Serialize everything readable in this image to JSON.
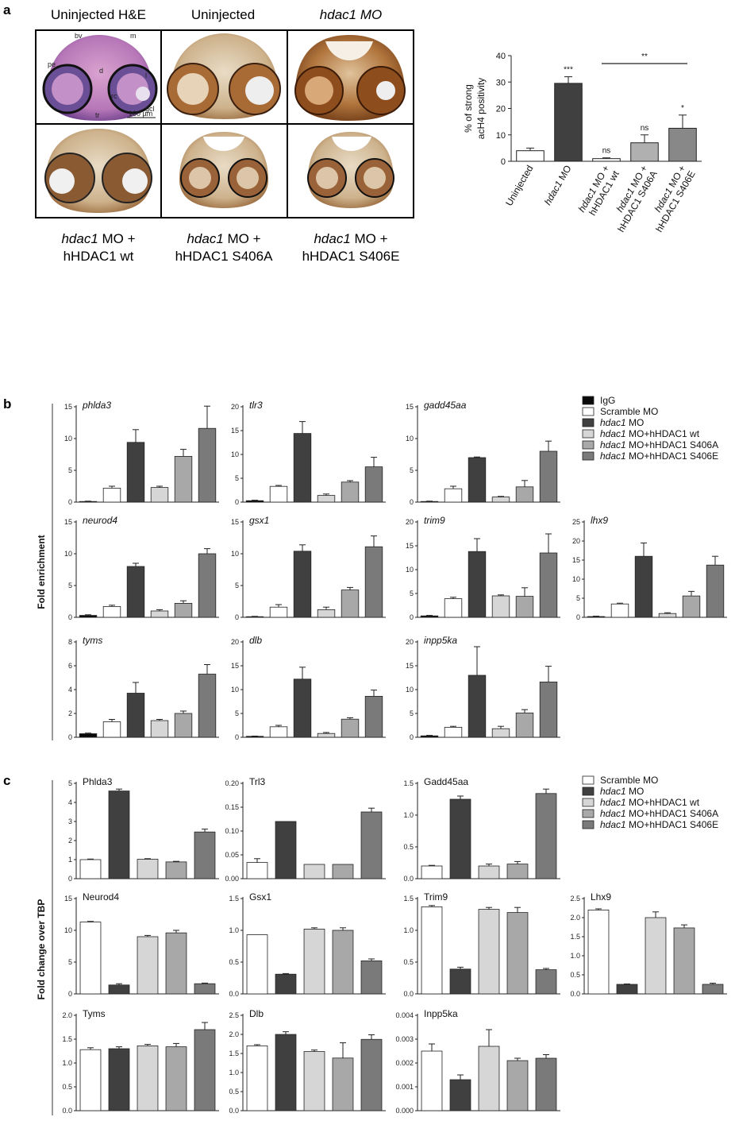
{
  "panel_a": {
    "letter": "a",
    "micro_titles": [
      {
        "text": "Uninjected H&E",
        "italic": false
      },
      {
        "text": "Uninjected",
        "italic": false
      },
      {
        "text": "hdac1 MO",
        "italic": true
      }
    ],
    "he_labels": [
      "bv",
      "m",
      "pe",
      "d",
      "l",
      "rc",
      "gcl",
      "tr",
      "100 µm"
    ],
    "captions": [
      {
        "line1_italic": "hdac1",
        "line1_rest": " MO +",
        "line2": "hHDAC1 wt"
      },
      {
        "line1_italic": "hdac1",
        "line1_rest": " MO +",
        "line2": "hHDAC1 S406A"
      },
      {
        "line1_italic": "hdac1",
        "line1_rest": " MO +",
        "line2": "hHDAC1 S406E"
      }
    ]
  },
  "panel_b": {
    "letter": "b",
    "ylabel": "Fold enrichment"
  },
  "panel_c": {
    "letter": "c",
    "ylabel": "Fold change over TBP"
  },
  "colors": {
    "IgG": "#0a0a0a",
    "scramble": "#ffffff",
    "mo": "#404040",
    "wt": "#d6d6d6",
    "s406a": "#a8a8a8",
    "s406e": "#7a7a7a"
  },
  "chart_data": [
    {
      "id": "a-chart",
      "type": "bar",
      "ylabel": "% of strong acH4 positivity",
      "ylim": [
        0,
        40
      ],
      "yticks": [
        "0",
        "10",
        "20",
        "30",
        "40"
      ],
      "categories": [
        {
          "italic": "",
          "rest": "Uninjected",
          "line2": ""
        },
        {
          "italic": "hdac1",
          "rest": " MO",
          "line2": ""
        },
        {
          "italic": "hdac1",
          "rest": " MO +",
          "line2": "hHDAC1 wt"
        },
        {
          "italic": "hdac1",
          "rest": " MO +",
          "line2": "hHDAC1 S406A"
        },
        {
          "italic": "hdac1",
          "rest": " MO +",
          "line2": "hHDAC1 S406E"
        }
      ],
      "values": [
        4,
        29.5,
        1,
        7,
        12.5
      ],
      "errors": [
        1,
        2.5,
        0.3,
        3,
        5
      ],
      "colors": [
        "#ffffff",
        "#404040",
        "#ffffff",
        "#b0b0b0",
        "#888888"
      ],
      "significance": [
        "",
        "***",
        "ns",
        "ns",
        "*"
      ],
      "bracket": {
        "from": 2,
        "to": 4,
        "label": "**",
        "y": 37
      }
    },
    {
      "id": "b-phlda3",
      "type": "bar",
      "title": "phlda3",
      "italic": true,
      "legend": [
        "IgG",
        "Scramble MO",
        "hdac1 MO",
        "hdac1 MO+hHDAC1 wt",
        "hdac1 MO+hHDAC1 S406A",
        "hdac1 MO+hHDAC1 S406E"
      ],
      "ylim": [
        0,
        15
      ],
      "yticks": [
        "0",
        "5",
        "10",
        "15"
      ],
      "values": [
        0.1,
        2.2,
        9.4,
        2.3,
        7.2,
        11.6
      ],
      "errors": [
        0.05,
        0.3,
        2.0,
        0.2,
        1.1,
        3.5
      ]
    },
    {
      "id": "b-tlr3",
      "type": "bar",
      "title": "tlr3",
      "italic": true,
      "ylim": [
        0,
        20
      ],
      "yticks": [
        "0",
        "5",
        "10",
        "15",
        "20"
      ],
      "values": [
        0.3,
        3.3,
        14.4,
        1.4,
        4.2,
        7.4
      ],
      "errors": [
        0.1,
        0.2,
        2.5,
        0.3,
        0.3,
        2.0
      ]
    },
    {
      "id": "b-gadd45aa",
      "type": "bar",
      "title": "gadd45aa",
      "italic": true,
      "ylim": [
        0,
        15
      ],
      "yticks": [
        "0",
        "5",
        "10",
        "15"
      ],
      "values": [
        0.1,
        2.1,
        7.0,
        0.8,
        2.4,
        8.0
      ],
      "errors": [
        0.05,
        0.4,
        0.1,
        0.1,
        1.0,
        1.6
      ]
    },
    {
      "id": "b-neurod4",
      "type": "bar",
      "title": "neurod4",
      "italic": true,
      "ylim": [
        0,
        15
      ],
      "yticks": [
        "0",
        "5",
        "10",
        "15"
      ],
      "values": [
        0.3,
        1.7,
        8.0,
        1.0,
        2.2,
        10.0
      ],
      "errors": [
        0.1,
        0.2,
        0.5,
        0.2,
        0.4,
        0.8
      ]
    },
    {
      "id": "b-gsx1",
      "type": "bar",
      "title": "gsx1",
      "italic": true,
      "ylim": [
        0,
        15
      ],
      "yticks": [
        "0",
        "5",
        "10",
        "15"
      ],
      "values": [
        0.1,
        1.6,
        10.4,
        1.2,
        4.3,
        11.1
      ],
      "errors": [
        0.05,
        0.4,
        1.0,
        0.4,
        0.4,
        1.7
      ]
    },
    {
      "id": "b-trim9",
      "type": "bar",
      "title": "trim9",
      "italic": true,
      "ylim": [
        0,
        20
      ],
      "yticks": [
        "0",
        "5",
        "10",
        "15",
        "20"
      ],
      "values": [
        0.3,
        3.9,
        13.8,
        4.5,
        4.4,
        13.5
      ],
      "errors": [
        0.1,
        0.3,
        2.7,
        0.2,
        1.8,
        4.0
      ]
    },
    {
      "id": "b-lhx9",
      "type": "bar",
      "title": "lhx9",
      "italic": true,
      "ylim": [
        0,
        25
      ],
      "yticks": [
        "0",
        "5",
        "10",
        "15",
        "20",
        "25"
      ],
      "values": [
        0.2,
        3.5,
        16.0,
        1.0,
        5.6,
        13.7
      ],
      "errors": [
        0.1,
        0.2,
        3.5,
        0.2,
        1.2,
        2.3
      ]
    },
    {
      "id": "b-tyms",
      "type": "bar",
      "title": "tyms",
      "italic": true,
      "ylim": [
        0,
        8
      ],
      "yticks": [
        "0",
        "2",
        "4",
        "6",
        "8"
      ],
      "values": [
        0.3,
        1.3,
        3.7,
        1.4,
        2.0,
        5.3
      ],
      "errors": [
        0.05,
        0.2,
        0.9,
        0.1,
        0.2,
        0.8
      ]
    },
    {
      "id": "b-dlb",
      "type": "bar",
      "title": "dlb",
      "italic": true,
      "ylim": [
        0,
        20
      ],
      "yticks": [
        "0",
        "5",
        "10",
        "15",
        "20"
      ],
      "values": [
        0.2,
        2.2,
        12.2,
        0.8,
        3.8,
        8.6
      ],
      "errors": [
        0.05,
        0.3,
        2.5,
        0.2,
        0.3,
        1.3
      ]
    },
    {
      "id": "b-inpp5ka",
      "type": "bar",
      "title": "inpp5ka",
      "italic": true,
      "ylim": [
        0,
        20
      ],
      "yticks": [
        "0",
        "5",
        "10",
        "15",
        "20"
      ],
      "values": [
        0.3,
        2.1,
        13.0,
        1.8,
        5.1,
        11.6
      ],
      "errors": [
        0.1,
        0.2,
        6.0,
        0.5,
        0.7,
        3.3
      ]
    },
    {
      "id": "c-phlda3",
      "type": "bar",
      "title": "Phlda3",
      "italic": false,
      "legend": [
        "Scramble MO",
        "hdac1 MO",
        "hdac1 MO+hHDAC1 wt",
        "hdac1 MO+hHDAC1 S406A",
        "hdac1 MO+hHDAC1 S406E"
      ],
      "ylim": [
        0,
        5
      ],
      "yticks": [
        "0",
        "1",
        "2",
        "3",
        "4",
        "5"
      ],
      "values": [
        1.0,
        4.6,
        1.02,
        0.88,
        2.45
      ],
      "errors": [
        0.03,
        0.1,
        0.03,
        0.03,
        0.15
      ]
    },
    {
      "id": "c-trl3",
      "type": "bar",
      "title": "Trl3",
      "italic": false,
      "ylim": [
        0,
        0.2
      ],
      "yticks": [
        "0.00",
        "0.05",
        "0.10",
        "0.15",
        "0.20"
      ],
      "values": [
        0.034,
        0.12,
        0.03,
        0.03,
        0.14
      ],
      "errors": [
        0.008,
        0.0,
        0.0,
        0.0,
        0.008
      ]
    },
    {
      "id": "c-gadd45aa",
      "type": "bar",
      "title": "Gadd45aa",
      "italic": false,
      "ylim": [
        0,
        1.5
      ],
      "yticks": [
        "0.0",
        "0.5",
        "1.0",
        "1.5"
      ],
      "values": [
        0.2,
        1.25,
        0.2,
        0.23,
        1.34
      ],
      "errors": [
        0.01,
        0.05,
        0.03,
        0.04,
        0.07
      ]
    },
    {
      "id": "c-neurod4",
      "type": "bar",
      "title": "Neurod4",
      "italic": false,
      "ylim": [
        0,
        15
      ],
      "yticks": [
        "0",
        "5",
        "10",
        "15"
      ],
      "values": [
        11.3,
        1.4,
        9.0,
        9.6,
        1.6
      ],
      "errors": [
        0.1,
        0.2,
        0.2,
        0.4,
        0.1
      ]
    },
    {
      "id": "c-gsx1",
      "type": "bar",
      "title": "Gsx1",
      "italic": false,
      "ylim": [
        0,
        1.5
      ],
      "yticks": [
        "0.0",
        "0.5",
        "1.0",
        "1.5"
      ],
      "values": [
        0.93,
        0.31,
        1.02,
        1.0,
        0.52
      ],
      "errors": [
        0.0,
        0.01,
        0.02,
        0.04,
        0.03
      ]
    },
    {
      "id": "c-trim9",
      "type": "bar",
      "title": "Trim9",
      "italic": false,
      "ylim": [
        0,
        1.5
      ],
      "yticks": [
        "0.0",
        "0.5",
        "1.0",
        "1.5"
      ],
      "values": [
        1.37,
        0.39,
        1.33,
        1.28,
        0.38
      ],
      "errors": [
        0.02,
        0.03,
        0.03,
        0.08,
        0.02
      ]
    },
    {
      "id": "c-lhx9",
      "type": "bar",
      "title": "Lhx9",
      "italic": false,
      "ylim": [
        0,
        2.5
      ],
      "yticks": [
        "0.0",
        "0.5",
        "1.0",
        "1.5",
        "2.0",
        "2.5"
      ],
      "values": [
        2.2,
        0.25,
        2.0,
        1.73,
        0.25
      ],
      "errors": [
        0.03,
        0.01,
        0.15,
        0.08,
        0.03
      ]
    },
    {
      "id": "c-tyms",
      "type": "bar",
      "title": "Tyms",
      "italic": false,
      "ylim": [
        0,
        2.0
      ],
      "yticks": [
        "0.0",
        "0.5",
        "1.0",
        "1.5",
        "2.0"
      ],
      "values": [
        1.28,
        1.3,
        1.36,
        1.34,
        1.7
      ],
      "errors": [
        0.04,
        0.04,
        0.03,
        0.07,
        0.15
      ]
    },
    {
      "id": "c-dlb",
      "type": "bar",
      "title": "Dlb",
      "italic": false,
      "ylim": [
        0,
        2.5
      ],
      "yticks": [
        "0.0",
        "0.5",
        "1.0",
        "1.5",
        "2.0",
        "2.5"
      ],
      "values": [
        1.7,
        2.0,
        1.55,
        1.38,
        1.87
      ],
      "errors": [
        0.03,
        0.07,
        0.04,
        0.4,
        0.12
      ]
    },
    {
      "id": "c-inpp5ka",
      "type": "bar",
      "title": "Inpp5ka",
      "italic": false,
      "ylim": [
        0,
        0.004
      ],
      "yticks": [
        "0.000",
        "0.001",
        "0.002",
        "0.003",
        "0.004"
      ],
      "values": [
        0.0025,
        0.0013,
        0.0027,
        0.0021,
        0.0022
      ],
      "errors": [
        0.0003,
        0.0002,
        0.0007,
        0.0001,
        0.00015
      ]
    }
  ]
}
